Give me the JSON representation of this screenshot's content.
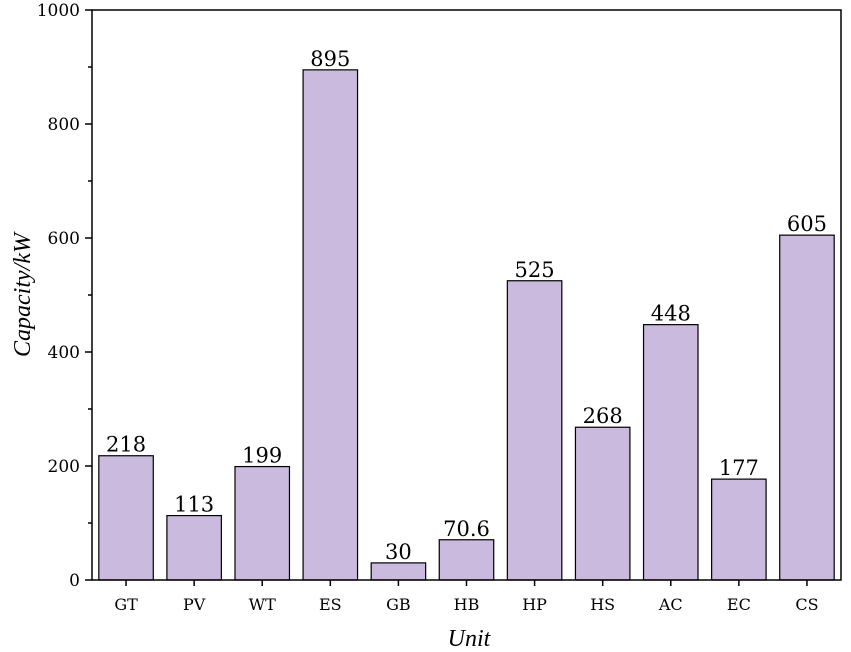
{
  "chart_data": {
    "type": "bar",
    "categories": [
      "GT",
      "PV",
      "WT",
      "ES",
      "GB",
      "HB",
      "HP",
      "HS",
      "AC",
      "EC",
      "CS"
    ],
    "values": [
      218,
      113,
      199,
      895,
      30,
      70.6,
      525,
      268,
      448,
      177,
      605
    ],
    "value_labels": [
      "218",
      "113",
      "199",
      "895",
      "30",
      "70.6",
      "525",
      "268",
      "448",
      "177",
      "605"
    ],
    "title": "",
    "xlabel": "Unit",
    "ylabel": "Capacity/kW",
    "ylim": [
      0,
      1000
    ],
    "yticks": [
      0,
      200,
      400,
      600,
      800,
      1000
    ],
    "bar_color": "#c9bade",
    "grid": false,
    "legend": "none"
  }
}
